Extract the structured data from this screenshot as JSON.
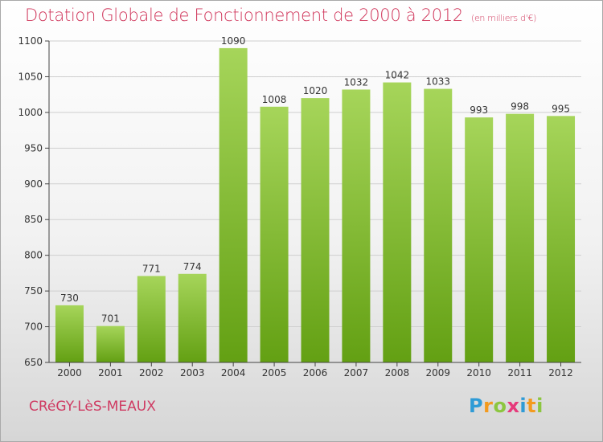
{
  "header": {
    "title": "Dotation Globale de Fonctionnement de 2000 à 2012",
    "unit": "(en milliers d'€)"
  },
  "footer": {
    "commune": "CRéGY-LèS-MEAUX",
    "brand": "Proxiti",
    "brand_letters": [
      {
        "ch": "P",
        "color": "#2f9bd6"
      },
      {
        "ch": "r",
        "color": "#f39a1e"
      },
      {
        "ch": "o",
        "color": "#8cc63f"
      },
      {
        "ch": "x",
        "color": "#e63a7b"
      },
      {
        "ch": "i",
        "color": "#2f9bd6"
      },
      {
        "ch": "t",
        "color": "#f39a1e"
      },
      {
        "ch": "i",
        "color": "#8cc63f"
      }
    ]
  },
  "colors": {
    "bar_top": "#a6d55a",
    "bar_bottom": "#63a013",
    "title": "#d0365b",
    "grid": "#cfcfcf"
  },
  "chart_data": {
    "type": "bar",
    "categories": [
      "2000",
      "2001",
      "2002",
      "2003",
      "2004",
      "2005",
      "2006",
      "2007",
      "2008",
      "2009",
      "2010",
      "2011",
      "2012"
    ],
    "values": [
      730,
      701,
      771,
      774,
      1090,
      1008,
      1020,
      1032,
      1042,
      1033,
      993,
      998,
      995
    ],
    "data_labels": [
      "730",
      "701",
      "771",
      "774",
      "1090",
      "1008",
      "1020",
      "1032",
      "1042",
      "1033",
      "993",
      "998",
      "995"
    ],
    "title": "Dotation Globale de Fonctionnement de 2000 à 2012",
    "subtitle": "(en milliers d'€)",
    "xlabel": "",
    "ylabel": "",
    "ylim": [
      650,
      1100
    ],
    "yticks": [
      650,
      700,
      750,
      800,
      850,
      900,
      950,
      1000,
      1050,
      1100
    ],
    "grid": true
  }
}
